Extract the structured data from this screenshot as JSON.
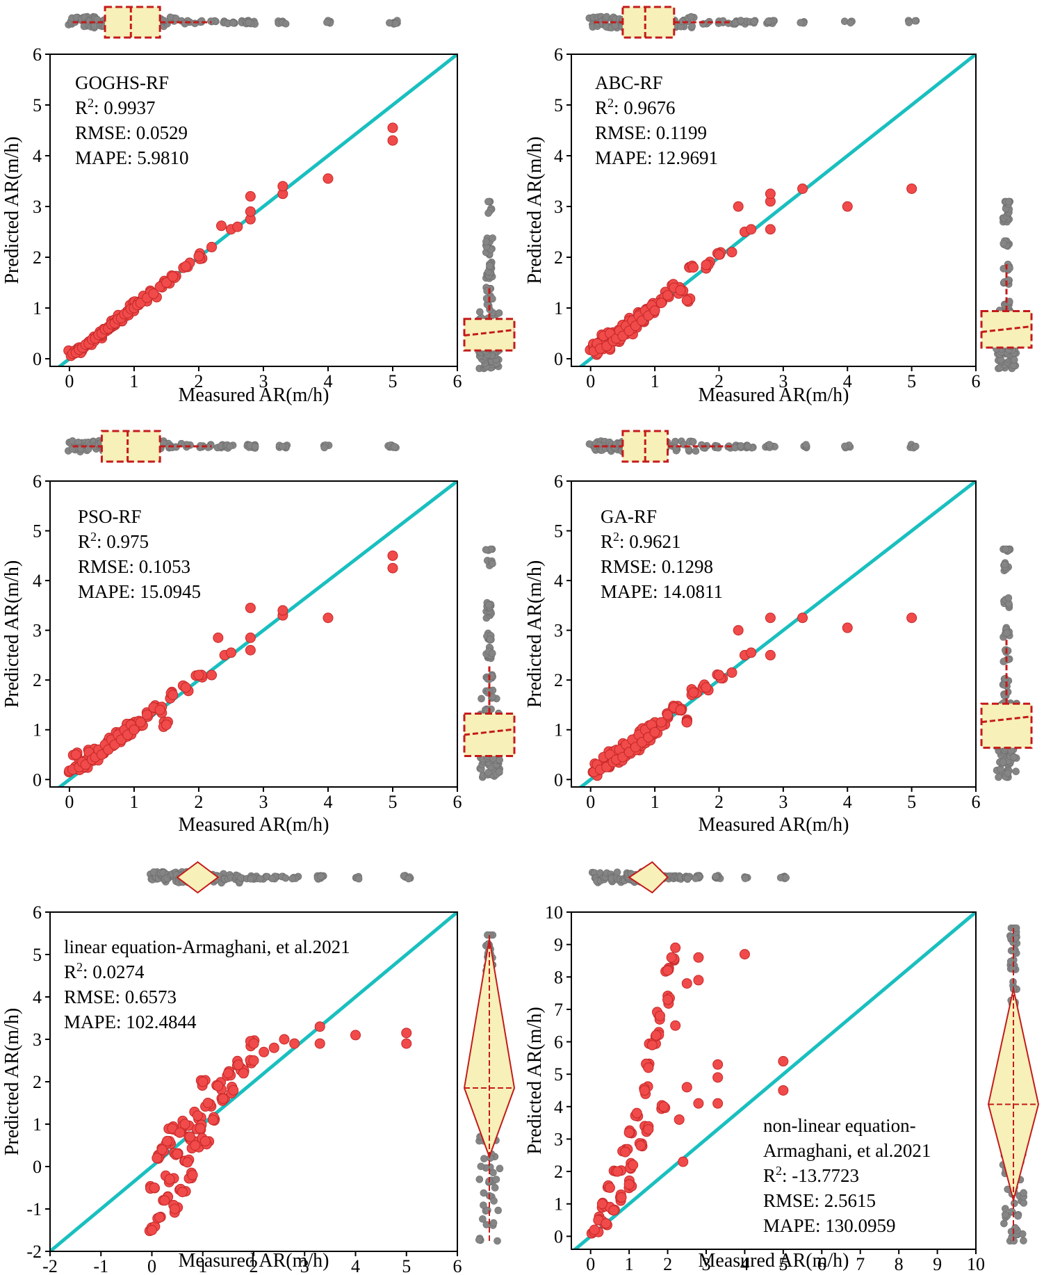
{
  "colors": {
    "point": "#f04a4a",
    "point_stroke": "#c62828",
    "identity_line": "#1abfbf",
    "marginal_point": "#858585",
    "marginal_box_fill": "#f7f0b8",
    "marginal_box_stroke": "#c41a1a"
  },
  "chart_data": [
    {
      "type": "scatter",
      "panel": "top-left",
      "model": "GOGHS-RF",
      "stats": [
        {
          "key": "R",
          "sup": "2",
          "text": ": 0.9937"
        },
        {
          "key": "RMSE:  0.0529"
        },
        {
          "key": "MAPE: 5.9810"
        }
      ],
      "xlabel": "Measured AR(m/h)",
      "ylabel": "Predicted AR(m/h)",
      "xlim": [
        -0.3,
        6
      ],
      "ylim": [
        -0.15,
        6
      ],
      "xticks": [
        0,
        1,
        2,
        3,
        4,
        5,
        6
      ],
      "yticks": [
        0,
        1,
        2,
        3,
        4,
        5,
        6
      ],
      "reference_line": "y = x",
      "marginal": "box",
      "legend_position": "top-left",
      "points": [
        [
          0.05,
          0.1
        ],
        [
          0.1,
          0.12
        ],
        [
          0.15,
          0.18
        ],
        [
          0.2,
          0.22
        ],
        [
          0.25,
          0.28
        ],
        [
          0.3,
          0.3
        ],
        [
          0.35,
          0.38
        ],
        [
          0.4,
          0.4
        ],
        [
          0.45,
          0.47
        ],
        [
          0.5,
          0.5
        ],
        [
          0.55,
          0.58
        ],
        [
          0.6,
          0.6
        ],
        [
          0.65,
          0.68
        ],
        [
          0.7,
          0.7
        ],
        [
          0.75,
          0.78
        ],
        [
          0.8,
          0.8
        ],
        [
          0.85,
          0.88
        ],
        [
          0.9,
          0.9
        ],
        [
          0.95,
          0.98
        ],
        [
          1.0,
          1.0
        ],
        [
          1.05,
          1.06
        ],
        [
          1.1,
          1.1
        ],
        [
          1.2,
          1.2
        ],
        [
          1.3,
          1.28
        ],
        [
          1.4,
          1.42
        ],
        [
          1.5,
          1.5
        ],
        [
          1.6,
          1.62
        ],
        [
          1.8,
          1.82
        ],
        [
          2.0,
          2.02
        ],
        [
          2.2,
          2.2
        ],
        [
          2.35,
          2.62
        ],
        [
          2.5,
          2.55
        ],
        [
          2.6,
          2.6
        ],
        [
          2.8,
          2.75
        ],
        [
          2.8,
          2.9
        ],
        [
          2.8,
          3.2
        ],
        [
          3.3,
          3.25
        ],
        [
          3.3,
          3.4
        ],
        [
          4.0,
          3.55
        ],
        [
          5.0,
          4.3
        ],
        [
          5.0,
          4.55
        ]
      ]
    },
    {
      "type": "scatter",
      "panel": "top-right",
      "model": "ABC-RF",
      "stats": [
        {
          "key": "R",
          "sup": "2",
          "text": ": 0.9676"
        },
        {
          "key": "RMSE:  0.1199"
        },
        {
          "key": "MAPE: 12.9691"
        }
      ],
      "xlabel": "Measured AR(m/h)",
      "ylabel": "Predicted AR(m/h)",
      "xlim": [
        -0.3,
        6
      ],
      "ylim": [
        -0.15,
        6
      ],
      "xticks": [
        0,
        1,
        2,
        3,
        4,
        5,
        6
      ],
      "yticks": [
        0,
        1,
        2,
        3,
        4,
        5,
        6
      ],
      "reference_line": "y = x",
      "marginal": "box",
      "legend_position": "top-left",
      "points": [
        [
          0.05,
          0.15
        ],
        [
          0.1,
          0.3
        ],
        [
          0.15,
          0.2
        ],
        [
          0.2,
          0.45
        ],
        [
          0.25,
          0.25
        ],
        [
          0.3,
          0.5
        ],
        [
          0.35,
          0.35
        ],
        [
          0.4,
          0.4
        ],
        [
          0.45,
          0.55
        ],
        [
          0.5,
          0.45
        ],
        [
          0.55,
          0.65
        ],
        [
          0.6,
          0.55
        ],
        [
          0.65,
          0.75
        ],
        [
          0.7,
          0.65
        ],
        [
          0.75,
          0.85
        ],
        [
          0.8,
          0.75
        ],
        [
          0.85,
          0.95
        ],
        [
          0.9,
          0.85
        ],
        [
          0.95,
          1.05
        ],
        [
          1.0,
          0.95
        ],
        [
          1.1,
          1.1
        ],
        [
          1.2,
          1.25
        ],
        [
          1.3,
          1.4
        ],
        [
          1.4,
          1.35
        ],
        [
          1.5,
          1.15
        ],
        [
          1.6,
          1.8
        ],
        [
          1.8,
          1.85
        ],
        [
          2.0,
          2.05
        ],
        [
          2.2,
          2.1
        ],
        [
          2.3,
          3.0
        ],
        [
          2.4,
          2.5
        ],
        [
          2.5,
          2.55
        ],
        [
          2.8,
          2.55
        ],
        [
          2.8,
          3.1
        ],
        [
          2.8,
          3.25
        ],
        [
          3.3,
          3.35
        ],
        [
          4.0,
          3.0
        ],
        [
          5.0,
          3.35
        ]
      ]
    },
    {
      "type": "scatter",
      "panel": "middle-left",
      "model": "PSO-RF",
      "stats": [
        {
          "key": "R",
          "sup": "2",
          "text": ": 0.975"
        },
        {
          "key": "RMSE:  0.1053"
        },
        {
          "key": "MAPE: 15.0945"
        }
      ],
      "xlabel": "Measured AR(m/h)",
      "ylabel": "Predicted AR(m/h)",
      "xlim": [
        -0.3,
        6
      ],
      "ylim": [
        -0.15,
        6
      ],
      "xticks": [
        0,
        1,
        2,
        3,
        4,
        5,
        6
      ],
      "yticks": [
        0,
        1,
        2,
        3,
        4,
        5,
        6
      ],
      "reference_line": "y = x",
      "marginal": "box",
      "legend_position": "top-left",
      "points": [
        [
          0.05,
          0.2
        ],
        [
          0.1,
          0.5
        ],
        [
          0.15,
          0.25
        ],
        [
          0.2,
          0.35
        ],
        [
          0.25,
          0.3
        ],
        [
          0.3,
          0.55
        ],
        [
          0.35,
          0.4
        ],
        [
          0.4,
          0.45
        ],
        [
          0.45,
          0.6
        ],
        [
          0.5,
          0.5
        ],
        [
          0.55,
          0.7
        ],
        [
          0.6,
          0.6
        ],
        [
          0.65,
          0.8
        ],
        [
          0.7,
          0.7
        ],
        [
          0.75,
          0.9
        ],
        [
          0.8,
          0.8
        ],
        [
          0.85,
          1.0
        ],
        [
          0.9,
          0.9
        ],
        [
          0.95,
          1.1
        ],
        [
          1.0,
          1.0
        ],
        [
          1.1,
          1.15
        ],
        [
          1.2,
          1.3
        ],
        [
          1.3,
          1.45
        ],
        [
          1.4,
          1.4
        ],
        [
          1.5,
          1.1
        ],
        [
          1.6,
          1.7
        ],
        [
          1.8,
          1.85
        ],
        [
          2.0,
          2.1
        ],
        [
          2.2,
          2.1
        ],
        [
          2.3,
          2.85
        ],
        [
          2.4,
          2.5
        ],
        [
          2.5,
          2.55
        ],
        [
          2.8,
          2.6
        ],
        [
          2.8,
          2.85
        ],
        [
          2.8,
          3.45
        ],
        [
          3.3,
          3.3
        ],
        [
          3.3,
          3.4
        ],
        [
          4.0,
          3.25
        ],
        [
          5.0,
          4.25
        ],
        [
          5.0,
          4.5
        ]
      ]
    },
    {
      "type": "scatter",
      "panel": "middle-right",
      "model": "GA-RF",
      "stats": [
        {
          "key": "R",
          "sup": "2",
          "text": ": 0.9621"
        },
        {
          "key": "RMSE:  0.1298"
        },
        {
          "key": "MAPE: 14.0811"
        }
      ],
      "xlabel": "Measured AR(m/h)",
      "ylabel": "Predicted AR(m/h)",
      "xlim": [
        -0.3,
        6
      ],
      "ylim": [
        -0.15,
        6
      ],
      "xticks": [
        0,
        1,
        2,
        3,
        4,
        5,
        6
      ],
      "yticks": [
        0,
        1,
        2,
        3,
        4,
        5,
        6
      ],
      "reference_line": "y = x",
      "marginal": "box",
      "legend_position": "top-left",
      "points": [
        [
          0.05,
          0.15
        ],
        [
          0.1,
          0.3
        ],
        [
          0.15,
          0.2
        ],
        [
          0.2,
          0.45
        ],
        [
          0.25,
          0.25
        ],
        [
          0.3,
          0.5
        ],
        [
          0.35,
          0.35
        ],
        [
          0.4,
          0.4
        ],
        [
          0.45,
          0.6
        ],
        [
          0.5,
          0.45
        ],
        [
          0.55,
          0.7
        ],
        [
          0.6,
          0.55
        ],
        [
          0.65,
          0.8
        ],
        [
          0.7,
          0.65
        ],
        [
          0.75,
          0.9
        ],
        [
          0.8,
          0.75
        ],
        [
          0.85,
          1.0
        ],
        [
          0.9,
          0.85
        ],
        [
          0.95,
          1.1
        ],
        [
          1.0,
          0.95
        ],
        [
          1.1,
          1.15
        ],
        [
          1.2,
          1.3
        ],
        [
          1.3,
          1.45
        ],
        [
          1.4,
          1.4
        ],
        [
          1.5,
          1.15
        ],
        [
          1.6,
          1.75
        ],
        [
          1.8,
          1.85
        ],
        [
          2.0,
          2.1
        ],
        [
          2.2,
          2.15
        ],
        [
          2.3,
          3.0
        ],
        [
          2.4,
          2.5
        ],
        [
          2.5,
          2.55
        ],
        [
          2.8,
          2.5
        ],
        [
          2.8,
          3.25
        ],
        [
          3.3,
          3.25
        ],
        [
          4.0,
          3.05
        ],
        [
          5.0,
          3.25
        ]
      ]
    },
    {
      "type": "scatter",
      "panel": "bottom-left",
      "model": "linear equation-Armaghani, et al.2021",
      "stats": [
        {
          "key": "R",
          "sup": "2",
          "text": ": 0.0274"
        },
        {
          "key": "RMSE:  0.6573"
        },
        {
          "key": "MAPE: 102.4844"
        }
      ],
      "xlabel": "Measured AR(m/h)",
      "ylabel": "Predicted AR(m/h)",
      "xlim": [
        -2,
        6
      ],
      "ylim": [
        -2,
        6
      ],
      "xticks": [
        -2,
        -1,
        0,
        1,
        2,
        3,
        4,
        5,
        6
      ],
      "yticks": [
        -2,
        -1,
        0,
        1,
        2,
        3,
        4,
        5,
        6
      ],
      "reference_line": "y = x",
      "marginal": "diamond",
      "legend_position": "top-left",
      "points": [
        [
          0.0,
          -1.5
        ],
        [
          0.05,
          -0.5
        ],
        [
          0.1,
          0.2
        ],
        [
          0.15,
          -1.2
        ],
        [
          0.2,
          0.4
        ],
        [
          0.25,
          -0.8
        ],
        [
          0.3,
          0.6
        ],
        [
          0.35,
          -0.3
        ],
        [
          0.4,
          0.9
        ],
        [
          0.45,
          -1.0
        ],
        [
          0.5,
          0.3
        ],
        [
          0.55,
          0.8
        ],
        [
          0.6,
          -0.6
        ],
        [
          0.65,
          1.0
        ],
        [
          0.7,
          0.1
        ],
        [
          0.75,
          0.7
        ],
        [
          0.8,
          -0.2
        ],
        [
          0.85,
          0.5
        ],
        [
          0.9,
          1.2
        ],
        [
          0.95,
          0.9
        ],
        [
          1.0,
          2.0
        ],
        [
          1.05,
          0.6
        ],
        [
          1.1,
          1.5
        ],
        [
          1.2,
          1.1
        ],
        [
          1.3,
          1.9
        ],
        [
          1.4,
          1.6
        ],
        [
          1.5,
          2.2
        ],
        [
          1.6,
          1.8
        ],
        [
          1.7,
          2.4
        ],
        [
          1.8,
          2.2
        ],
        [
          2.0,
          2.9
        ],
        [
          2.0,
          2.5
        ],
        [
          2.2,
          2.7
        ],
        [
          2.4,
          2.8
        ],
        [
          2.6,
          3.0
        ],
        [
          2.8,
          2.9
        ],
        [
          3.3,
          3.3
        ],
        [
          3.3,
          2.9
        ],
        [
          4.0,
          3.1
        ],
        [
          5.0,
          2.9
        ],
        [
          5.0,
          3.15
        ]
      ]
    },
    {
      "type": "scatter",
      "panel": "bottom-right",
      "model": "non-linear equation-Armaghani, et al.2021",
      "model_lines": [
        "non-linear equation-",
        "Armaghani, et al.2021"
      ],
      "stats": [
        {
          "key": "R",
          "sup": "2",
          "text": ": -13.7723"
        },
        {
          "key": "RMSE:  2.5615"
        },
        {
          "key": "MAPE: 130.0959"
        }
      ],
      "xlabel": "Measured AR(m/h)",
      "ylabel": "Predicted AR(m/h)",
      "xlim": [
        -0.5,
        10
      ],
      "ylim": [
        -0.4,
        10
      ],
      "xticks": [
        0,
        1,
        2,
        3,
        4,
        5,
        6,
        7,
        8,
        9,
        10
      ],
      "yticks": [
        0,
        1,
        2,
        3,
        4,
        5,
        6,
        7,
        8,
        9,
        10
      ],
      "reference_line": "y = x",
      "marginal": "diamond",
      "legend_position": "bottom-right",
      "points": [
        [
          0.1,
          0.2
        ],
        [
          0.2,
          0.5
        ],
        [
          0.3,
          1.0
        ],
        [
          0.4,
          0.4
        ],
        [
          0.5,
          1.5
        ],
        [
          0.6,
          0.8
        ],
        [
          0.7,
          2.0
        ],
        [
          0.8,
          1.2
        ],
        [
          0.9,
          2.6
        ],
        [
          1.0,
          1.6
        ],
        [
          1.0,
          3.2
        ],
        [
          1.1,
          2.2
        ],
        [
          1.2,
          3.8
        ],
        [
          1.3,
          2.8
        ],
        [
          1.4,
          4.5
        ],
        [
          1.5,
          3.3
        ],
        [
          1.5,
          5.2
        ],
        [
          1.6,
          5.9
        ],
        [
          1.7,
          6.2
        ],
        [
          1.8,
          6.8
        ],
        [
          1.9,
          4.0
        ],
        [
          2.0,
          7.3
        ],
        [
          2.0,
          8.2
        ],
        [
          2.1,
          8.6
        ],
        [
          2.2,
          8.9
        ],
        [
          2.2,
          6.5
        ],
        [
          2.3,
          3.6
        ],
        [
          2.4,
          2.3
        ],
        [
          2.5,
          4.6
        ],
        [
          2.5,
          7.8
        ],
        [
          2.8,
          7.9
        ],
        [
          2.8,
          8.6
        ],
        [
          2.8,
          4.1
        ],
        [
          3.3,
          4.1
        ],
        [
          3.3,
          4.9
        ],
        [
          3.3,
          5.3
        ],
        [
          4.0,
          8.7
        ],
        [
          5.0,
          4.5
        ],
        [
          5.0,
          5.4
        ]
      ]
    }
  ]
}
